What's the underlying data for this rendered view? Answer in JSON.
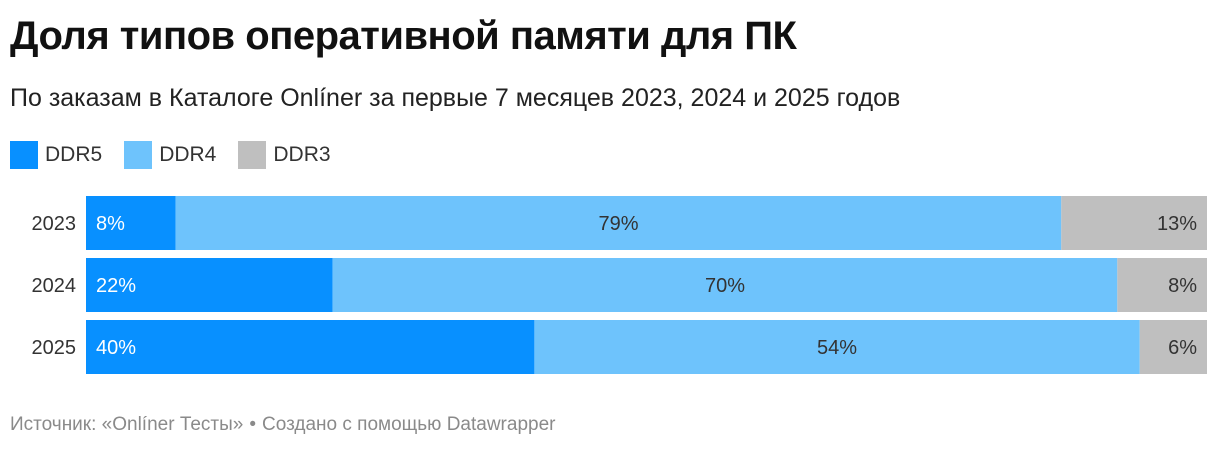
{
  "title": "Доля типов оперативной памяти для ПК",
  "subtitle": "По заказам в Каталоге Onlíner за первые 7 месяцев 2023, 2024 и 2025 годов",
  "legend": [
    {
      "label": "DDR5",
      "color": "#0890ff"
    },
    {
      "label": "DDR4",
      "color": "#6ec3fc"
    },
    {
      "label": "DDR3",
      "color": "#bfbfbf"
    }
  ],
  "footer": {
    "source": "Источник: «Onlíner Тесты»",
    "separator": "•",
    "credit": "Создано с помощью Datawrapper"
  },
  "chart_data": {
    "type": "bar",
    "orientation": "horizontal",
    "stacked": true,
    "categories": [
      "2023",
      "2024",
      "2025"
    ],
    "series": [
      {
        "name": "DDR5",
        "values": [
          8,
          22,
          40
        ],
        "labels": [
          "8%",
          "22%",
          "40%"
        ],
        "color": "#0890ff",
        "label_color": "#ffffff",
        "label_align": "left"
      },
      {
        "name": "DDR4",
        "values": [
          79,
          70,
          54
        ],
        "labels": [
          "79%",
          "70%",
          "54%"
        ],
        "color": "#6ec3fc",
        "label_color": "#333333",
        "label_align": "center"
      },
      {
        "name": "DDR3",
        "values": [
          13,
          8,
          6
        ],
        "labels": [
          "13%",
          "8%",
          "6%"
        ],
        "color": "#bfbfbf",
        "label_color": "#333333",
        "label_align": "right"
      }
    ],
    "xlim": [
      0,
      100
    ],
    "grid": false,
    "legend_position": "top-left"
  }
}
